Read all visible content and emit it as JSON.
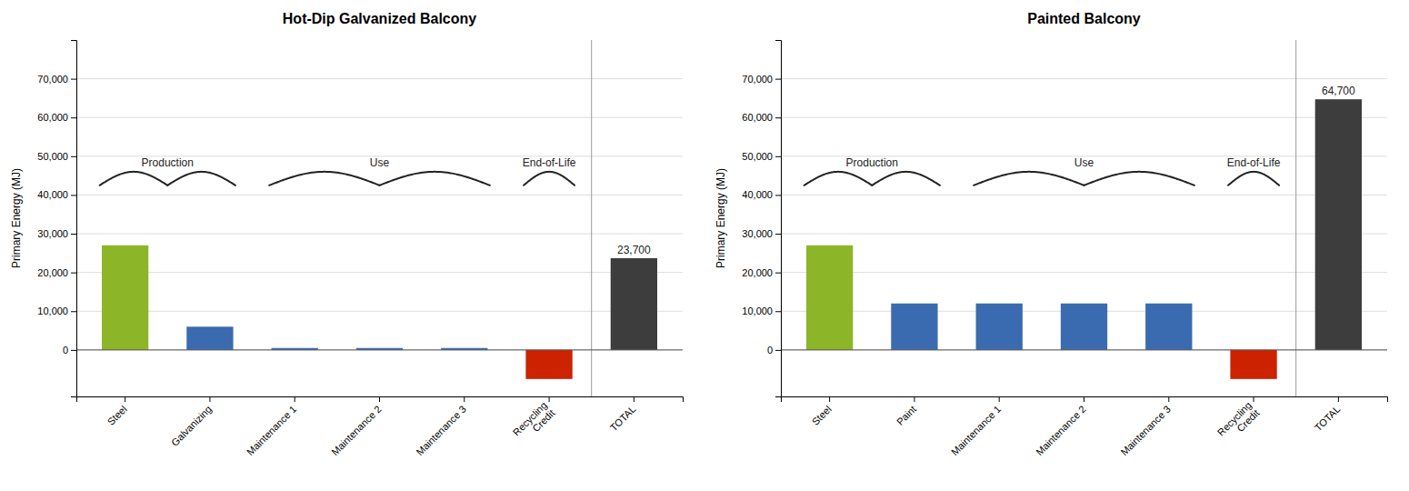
{
  "chart_data": [
    {
      "type": "bar",
      "title": "Hot-Dip Galvanized Balcony",
      "ylabel": "Primary Energy (MJ)",
      "categories": [
        "Steel",
        "Galvanizing",
        "Maintenance 1",
        "Maintenance 2",
        "Maintenance 3",
        "Recycling\nCredit",
        "TOTAL"
      ],
      "values": [
        27000,
        6000,
        500,
        500,
        500,
        -7500,
        23700
      ],
      "colors": [
        "#8DB528",
        "#3A6BB0",
        "#3A6BB0",
        "#3A6BB0",
        "#3A6BB0",
        "#CC2200",
        "#3D3D3D"
      ],
      "ylim": [
        -12000,
        80000
      ],
      "yticks": [
        0,
        {
          "value": 10000,
          "label": "10,000"
        },
        {
          "value": 20000,
          "label": "20,000"
        },
        {
          "value": 30000,
          "label": "30,000"
        },
        {
          "value": 40000,
          "label": "40,000"
        },
        {
          "value": 50000,
          "label": "50,000"
        },
        {
          "value": 60000,
          "label": "60,000"
        },
        {
          "value": 70000,
          "label": "70,000"
        }
      ],
      "grid": true,
      "annotations": [
        {
          "text": "23,700",
          "x": "TOTAL",
          "y": 23700
        },
        {
          "text": "Production",
          "from": "Steel",
          "to": "Galvanizing",
          "y": 42500,
          "y_top": 46000
        },
        {
          "text": "Use",
          "from": "Maintenance 1",
          "to": "Maintenance 3",
          "y": 42500,
          "y_top": 46000
        },
        {
          "text": "End-of-Life",
          "from": "Recycling\nCredit",
          "to": "Recycling\nCredit",
          "y": 42500,
          "y_top": 46000
        }
      ]
    },
    {
      "type": "bar",
      "title": "Painted Balcony",
      "ylabel": "Primary Energy (MJ)",
      "categories": [
        "Steel",
        "Paint",
        "Maintenance 1",
        "Maintenance 2",
        "Maintenance 3",
        "Recycling\nCredit",
        "TOTAL"
      ],
      "values": [
        27000,
        12000,
        12000,
        12000,
        12000,
        -7500,
        64700
      ],
      "colors": [
        "#8DB528",
        "#3A6BB0",
        "#3A6BB0",
        "#3A6BB0",
        "#3A6BB0",
        "#CC2200",
        "#3D3D3D"
      ],
      "ylim": [
        -12000,
        80000
      ],
      "yticks": [
        0,
        {
          "value": 10000,
          "label": "10,000"
        },
        {
          "value": 20000,
          "label": "20,000"
        },
        {
          "value": 30000,
          "label": "30,000"
        },
        {
          "value": 40000,
          "label": "40,000"
        },
        {
          "value": 50000,
          "label": "50,000"
        },
        {
          "value": 60000,
          "label": "60,000"
        },
        {
          "value": 70000,
          "label": "70,000"
        }
      ],
      "grid": true,
      "annotations": [
        {
          "text": "64,700",
          "x": "TOTAL",
          "y": 64700
        },
        {
          "text": "Production",
          "from": "Steel",
          "to": "Paint",
          "y": 42500,
          "y_top": 46000
        },
        {
          "text": "Use",
          "from": "Maintenance 1",
          "to": "Maintenance 3",
          "y": 42500,
          "y_top": 46000
        },
        {
          "text": "End-of-Life",
          "from": "Recycling\nCredit",
          "to": "Recycling\nCredit",
          "y": 42500,
          "y_top": 46000
        }
      ]
    }
  ]
}
